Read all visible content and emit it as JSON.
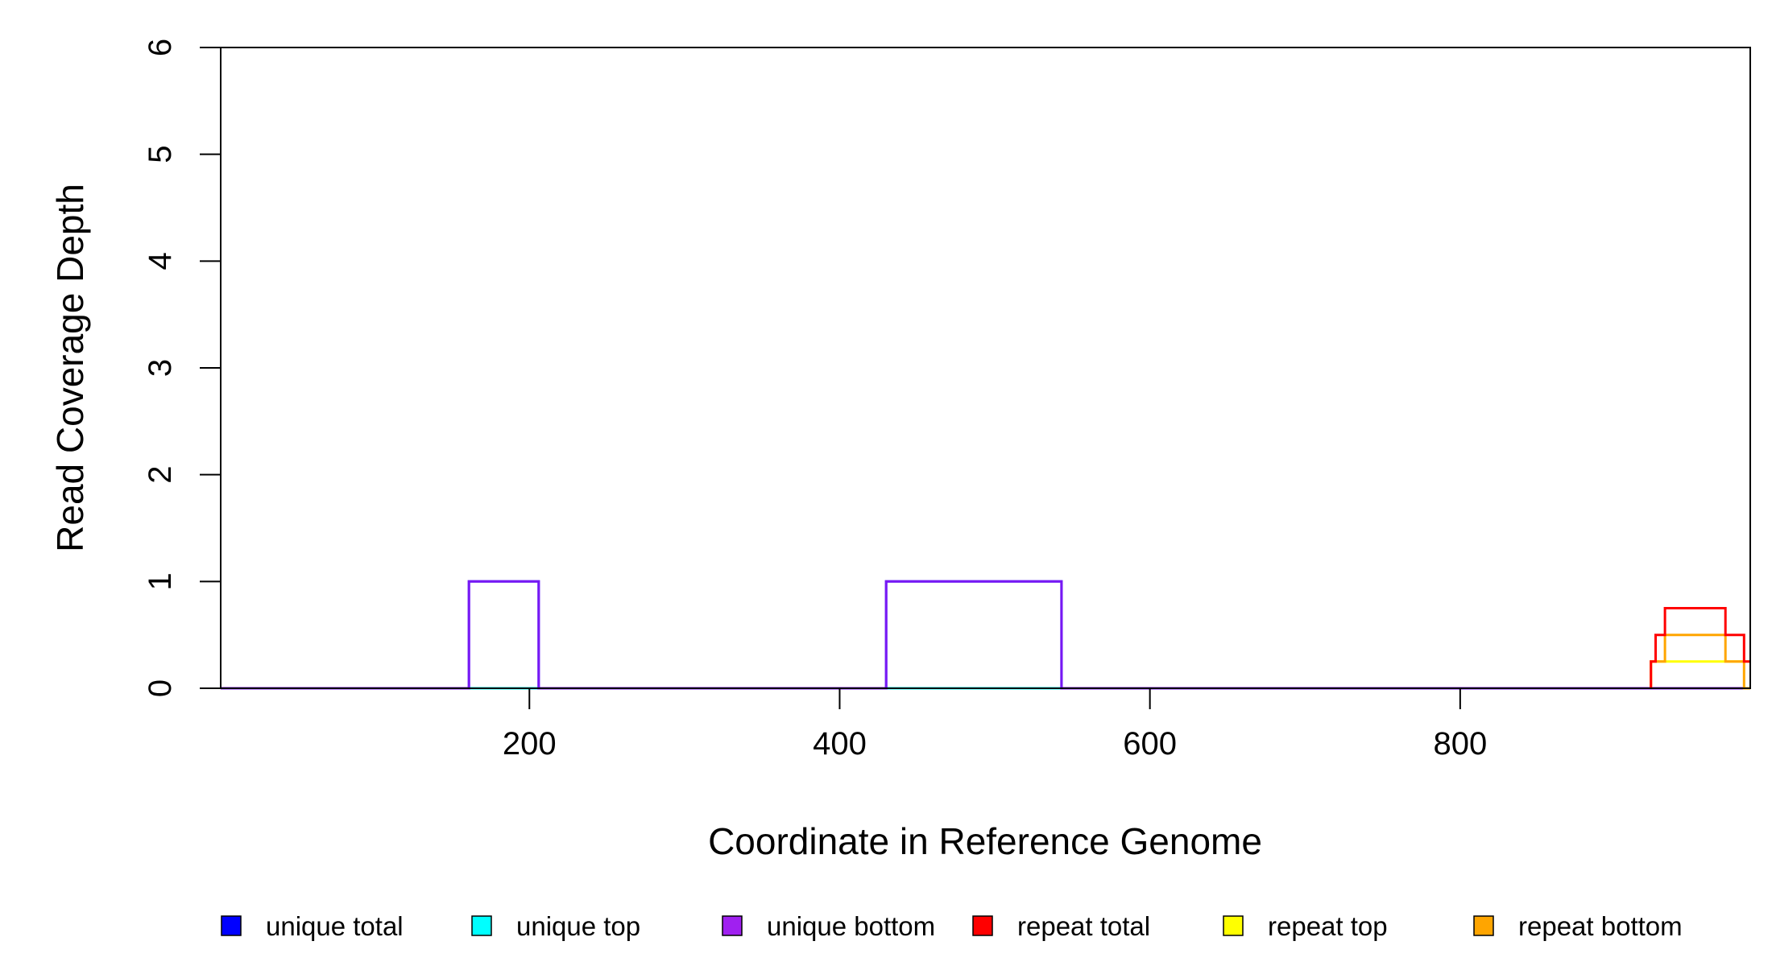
{
  "chart_data": {
    "type": "line",
    "xlabel": "Coordinate in Reference Genome",
    "ylabel": "Read Coverage Depth",
    "xlim": [
      1,
      987
    ],
    "ylim": [
      0,
      6
    ],
    "x_ticks": [
      200,
      400,
      600,
      800
    ],
    "y_ticks": [
      0,
      1,
      2,
      3,
      4,
      5,
      6
    ],
    "grid": false,
    "legend_position": "bottom",
    "series": [
      {
        "name": "unique total",
        "color": "#0000FF",
        "points": [
          [
            1,
            0
          ],
          [
            161,
            0
          ],
          [
            161,
            1
          ],
          [
            206,
            1
          ],
          [
            206,
            0
          ],
          [
            430,
            0
          ],
          [
            430,
            1
          ],
          [
            543,
            1
          ],
          [
            543,
            0
          ],
          [
            987,
            0
          ]
        ]
      },
      {
        "name": "unique top",
        "color": "#00FFFF",
        "points": [
          [
            1,
            0
          ],
          [
            987,
            0
          ]
        ]
      },
      {
        "name": "unique bottom",
        "color": "#A020F0",
        "points": [
          [
            1,
            0
          ],
          [
            161,
            0
          ],
          [
            161,
            1
          ],
          [
            206,
            1
          ],
          [
            206,
            0
          ],
          [
            430,
            0
          ],
          [
            430,
            1
          ],
          [
            543,
            1
          ],
          [
            543,
            0
          ],
          [
            987,
            0
          ]
        ]
      },
      {
        "name": "repeat total",
        "color": "#FF0000",
        "points": [
          [
            923,
            0
          ],
          [
            923,
            0.25
          ],
          [
            926,
            0.25
          ],
          [
            926,
            0.5
          ],
          [
            932,
            0.5
          ],
          [
            932,
            0.75
          ],
          [
            971,
            0.75
          ],
          [
            971,
            0.5
          ],
          [
            983,
            0.5
          ],
          [
            983,
            0.25
          ],
          [
            987,
            0.25
          ]
        ]
      },
      {
        "name": "repeat top",
        "color": "#FFFF00",
        "points": [
          [
            923,
            0
          ],
          [
            923,
            0.25
          ],
          [
            987,
            0.25
          ]
        ]
      },
      {
        "name": "repeat bottom",
        "color": "#FFA500",
        "points": [
          [
            923,
            0
          ],
          [
            923,
            0.25
          ],
          [
            932,
            0.25
          ],
          [
            932,
            0.5
          ],
          [
            971,
            0.5
          ],
          [
            971,
            0.25
          ],
          [
            983,
            0.25
          ],
          [
            983,
            0
          ],
          [
            987,
            0
          ]
        ]
      }
    ]
  }
}
